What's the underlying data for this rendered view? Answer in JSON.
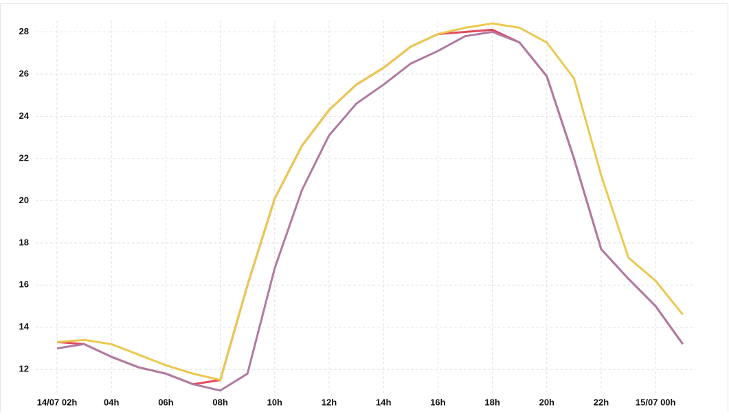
{
  "chart_data": {
    "type": "line",
    "categories": [
      "14/07 02h",
      null,
      "04h",
      null,
      "06h",
      null,
      "08h",
      null,
      "10h",
      null,
      "12h",
      null,
      "14h",
      null,
      "16h",
      null,
      "18h",
      null,
      "20h",
      null,
      "22h",
      null,
      "15/07 00h",
      null
    ],
    "series": [
      {
        "color": "#e04a5f",
        "values": [
          13.3,
          13.2,
          12.6,
          12.1,
          11.8,
          11.3,
          11.5,
          16.0,
          20.1,
          22.6,
          24.3,
          25.5,
          26.3,
          27.3,
          27.9,
          28.0,
          28.1,
          27.5,
          25.9,
          22.0,
          17.7,
          16.3,
          15.0,
          13.2
        ]
      },
      {
        "color": "#ebc84e",
        "values": [
          13.3,
          13.4,
          13.2,
          12.7,
          12.2,
          11.8,
          11.5,
          16.0,
          20.1,
          22.6,
          24.3,
          25.5,
          26.3,
          27.3,
          27.9,
          28.2,
          28.4,
          28.2,
          27.5,
          25.8,
          21.2,
          17.3,
          16.2,
          14.6
        ]
      },
      {
        "color": "#b07aa1",
        "values": [
          13.0,
          13.2,
          12.6,
          12.1,
          11.8,
          11.3,
          11.0,
          11.8,
          16.8,
          20.5,
          23.1,
          24.6,
          25.5,
          26.5,
          27.1,
          27.8,
          28.0,
          27.5,
          25.9,
          22.0,
          17.7,
          16.3,
          15.0,
          13.2
        ]
      }
    ],
    "ylim": [
      10.9,
      28.7
    ],
    "yticks": [
      12,
      14,
      16,
      18,
      20,
      22,
      24,
      26,
      28
    ],
    "grid": true
  }
}
